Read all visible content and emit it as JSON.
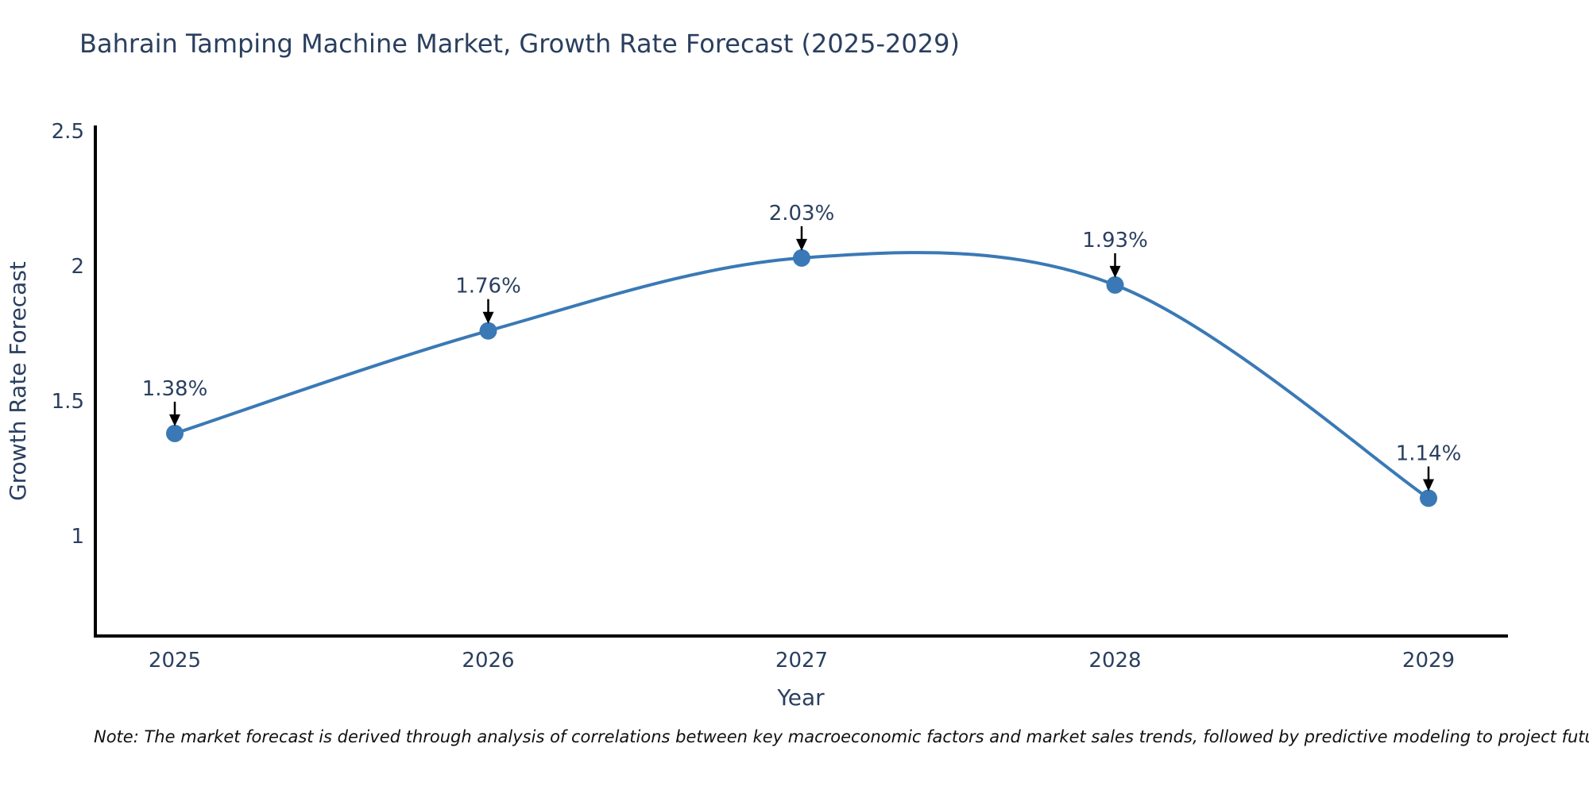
{
  "title": "Bahrain Tamping Machine Market, Growth Rate Forecast (2025-2029)",
  "note": "Note: The market forecast is derived through analysis of correlations between key macroeconomic factors and market sales trends, followed by predictive modeling to project future sales",
  "colors": {
    "text": "#2a3f5f",
    "accent": "#3a79b5",
    "axis": "#000000",
    "note_text": "#101010",
    "background": "#ffffff"
  },
  "chart_data": {
    "type": "line",
    "line_shape": "spline",
    "title": "Bahrain Tamping Machine Market, Growth Rate Forecast (2025-2029)",
    "xlabel": "Year",
    "ylabel": "Growth Rate Forecast",
    "categories": [
      "2025",
      "2026",
      "2027",
      "2028",
      "2029"
    ],
    "values": [
      1.38,
      1.76,
      2.03,
      1.93,
      1.14
    ],
    "labels": [
      "1.38%",
      "1.76%",
      "2.03%",
      "1.93%",
      "1.14%"
    ],
    "yticks": [
      2.5,
      2,
      1.5,
      1
    ],
    "yticklabels": [
      "2.5",
      "2",
      "1.5",
      "1"
    ],
    "ylim": [
      0.63,
      2.5
    ],
    "grid": false,
    "legend": false,
    "line_color": "#3a79b5",
    "marker_color": "#3a79b5",
    "annotation_arrow_color": "#000000"
  }
}
